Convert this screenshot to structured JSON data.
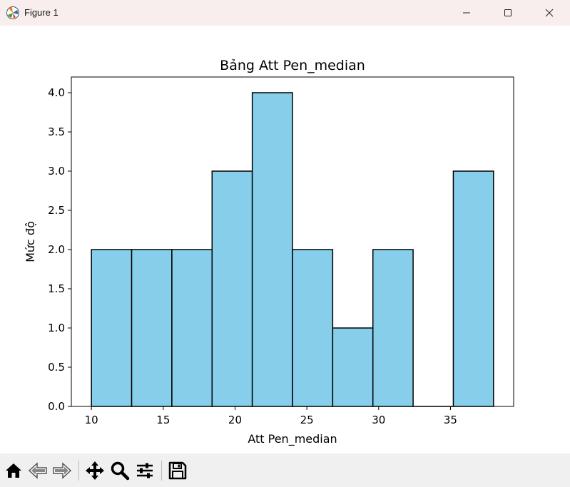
{
  "window": {
    "title": "Figure 1",
    "icons": {
      "app": "matplotlib-logo-icon",
      "minimize": "minimize-icon",
      "maximize": "maximize-icon",
      "close": "close-icon"
    }
  },
  "toolbar": {
    "buttons": [
      "home-icon",
      "back-arrow-icon",
      "forward-arrow-icon",
      "pan-move-icon",
      "zoom-magnifier-icon",
      "configure-subplots-icon",
      "save-floppy-icon"
    ]
  },
  "chart_data": {
    "type": "bar",
    "title": "Bảng Att Pen_median",
    "xlabel": "Att Pen_median",
    "ylabel": "Mức độ",
    "bin_edges": [
      10,
      12.8,
      15.6,
      18.4,
      21.2,
      24,
      26.8,
      29.6,
      32.4,
      35.2,
      38
    ],
    "values": [
      2,
      2,
      2,
      3,
      4,
      2,
      1,
      2,
      0,
      3
    ],
    "xlim": [
      8.6,
      39.4
    ],
    "ylim": [
      0,
      4.2
    ],
    "xticks": [
      10,
      15,
      20,
      25,
      30,
      35
    ],
    "yticks": [
      0,
      0.5,
      1,
      1.5,
      2,
      2.5,
      3,
      3.5,
      4
    ],
    "ytick_labels": [
      "0.0",
      "0.5",
      "1.0",
      "1.5",
      "2.0",
      "2.5",
      "3.0",
      "3.5",
      "4.0"
    ],
    "bar_color": "#87ceeb",
    "edge_color": "#000000",
    "grid": false,
    "legend": "none"
  }
}
